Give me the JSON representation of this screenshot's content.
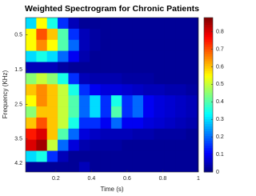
{
  "chart_data": {
    "type": "heatmap",
    "title": "Weighted Spectrogram for Chronic Patients",
    "x_label": "Time (s)",
    "y_label": "Frequency (KHz)",
    "x": [
      0.06,
      0.12,
      0.18,
      0.24,
      0.3,
      0.36,
      0.42,
      0.48,
      0.54,
      0.6,
      0.66,
      0.72,
      0.78,
      0.84,
      0.9,
      0.96
    ],
    "y": [
      0.16,
      0.48,
      0.8,
      1.12,
      1.44,
      1.76,
      2.08,
      2.4,
      2.72,
      3.04,
      3.36,
      3.68,
      4.0,
      4.32
    ],
    "z": [
      [
        0.3,
        0.55,
        0.35,
        0.15,
        0.05,
        0.02,
        0.02,
        0.02,
        0.02,
        0.02,
        0.02,
        0.02,
        0.02,
        0.02,
        0.02,
        0.02
      ],
      [
        0.55,
        0.7,
        0.6,
        0.4,
        0.15,
        0.05,
        0.03,
        0.02,
        0.02,
        0.02,
        0.02,
        0.02,
        0.02,
        0.02,
        0.02,
        0.02
      ],
      [
        0.55,
        0.65,
        0.55,
        0.4,
        0.2,
        0.05,
        0.03,
        0.02,
        0.02,
        0.02,
        0.02,
        0.02,
        0.02,
        0.02,
        0.02,
        0.02
      ],
      [
        0.3,
        0.35,
        0.3,
        0.2,
        0.1,
        0.04,
        0.02,
        0.02,
        0.02,
        0.02,
        0.02,
        0.02,
        0.02,
        0.02,
        0.02,
        0.02
      ],
      [
        0.05,
        0.05,
        0.05,
        0.03,
        0.02,
        0.02,
        0.02,
        0.02,
        0.02,
        0.02,
        0.02,
        0.02,
        0.02,
        0.02,
        0.02,
        0.02
      ],
      [
        0.45,
        0.5,
        0.45,
        0.35,
        0.15,
        0.05,
        0.04,
        0.04,
        0.04,
        0.03,
        0.03,
        0.03,
        0.02,
        0.02,
        0.02,
        0.02
      ],
      [
        0.6,
        0.65,
        0.6,
        0.5,
        0.35,
        0.15,
        0.1,
        0.08,
        0.08,
        0.07,
        0.06,
        0.05,
        0.05,
        0.04,
        0.04,
        0.03
      ],
      [
        0.55,
        0.65,
        0.6,
        0.5,
        0.4,
        0.2,
        0.3,
        0.15,
        0.35,
        0.15,
        0.2,
        0.1,
        0.08,
        0.07,
        0.06,
        0.05
      ],
      [
        0.45,
        0.6,
        0.6,
        0.5,
        0.4,
        0.2,
        0.3,
        0.15,
        0.4,
        0.15,
        0.2,
        0.1,
        0.08,
        0.07,
        0.06,
        0.05
      ],
      [
        0.6,
        0.7,
        0.6,
        0.5,
        0.35,
        0.15,
        0.15,
        0.1,
        0.2,
        0.1,
        0.1,
        0.08,
        0.07,
        0.06,
        0.05,
        0.04
      ],
      [
        0.75,
        0.8,
        0.6,
        0.4,
        0.2,
        0.08,
        0.06,
        0.05,
        0.05,
        0.05,
        0.04,
        0.04,
        0.03,
        0.03,
        0.03,
        0.02
      ],
      [
        0.8,
        0.85,
        0.5,
        0.2,
        0.08,
        0.04,
        0.03,
        0.03,
        0.03,
        0.02,
        0.02,
        0.02,
        0.02,
        0.02,
        0.02,
        0.02
      ],
      [
        0.3,
        0.35,
        0.15,
        0.05,
        0.02,
        0.02,
        0.02,
        0.02,
        0.02,
        0.02,
        0.02,
        0.02,
        0.02,
        0.02,
        0.02,
        0.02
      ],
      [
        0.02,
        0.02,
        0.02,
        0.02,
        0.02,
        0.05,
        0.02,
        0.02,
        0.02,
        0.02,
        0.02,
        0.02,
        0.02,
        0.02,
        0.02,
        0.02
      ]
    ],
    "xlim": [
      0.03,
      1
    ],
    "xticks": [
      0.2,
      0.4,
      0.6,
      0.8,
      1
    ],
    "ylim": [
      0,
      4.45
    ],
    "yticks": [
      0.5,
      1.5,
      2.5,
      3.5,
      4.2
    ],
    "y_reverse": true,
    "colormap": "jet",
    "clim": [
      0,
      0.88
    ],
    "cticks": [
      0,
      0.1,
      0.2,
      0.3,
      0.4,
      0.5,
      0.6,
      0.7,
      0.8
    ]
  }
}
